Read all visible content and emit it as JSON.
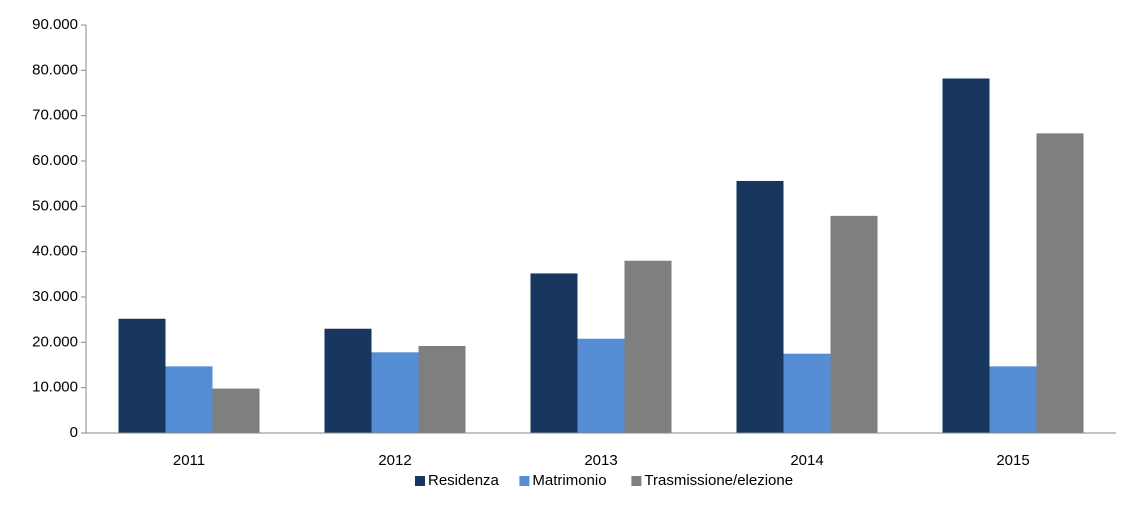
{
  "chart_data": {
    "type": "bar",
    "categories": [
      "2011",
      "2012",
      "2013",
      "2014",
      "2015"
    ],
    "series": [
      {
        "name": "Residenza",
        "color": "#17375e",
        "values": [
          25200,
          23000,
          35200,
          55600,
          78200
        ]
      },
      {
        "name": "Matrimonio",
        "color": "#558ed5",
        "values": [
          14700,
          17800,
          20800,
          17500,
          14700
        ]
      },
      {
        "name": "Trasmissione/elezione",
        "color": "#7f7f7f",
        "values": [
          9800,
          19200,
          38000,
          47900,
          66100
        ]
      }
    ],
    "ylim": [
      0,
      90000
    ],
    "yticks": [
      0,
      {
        "value": 10000,
        "label": "10.000"
      },
      {
        "value": 20000,
        "label": "20.000"
      },
      {
        "value": 30000,
        "label": "30.000"
      },
      {
        "value": 40000,
        "label": "40.000"
      },
      {
        "value": 50000,
        "label": "50.000"
      },
      {
        "value": 60000,
        "label": "60.000"
      },
      {
        "value": 70000,
        "label": "70.000"
      },
      {
        "value": 80000,
        "label": "80.000"
      },
      {
        "value": 90000,
        "label": "90.000"
      }
    ],
    "grid": false,
    "legend": "bottom"
  }
}
